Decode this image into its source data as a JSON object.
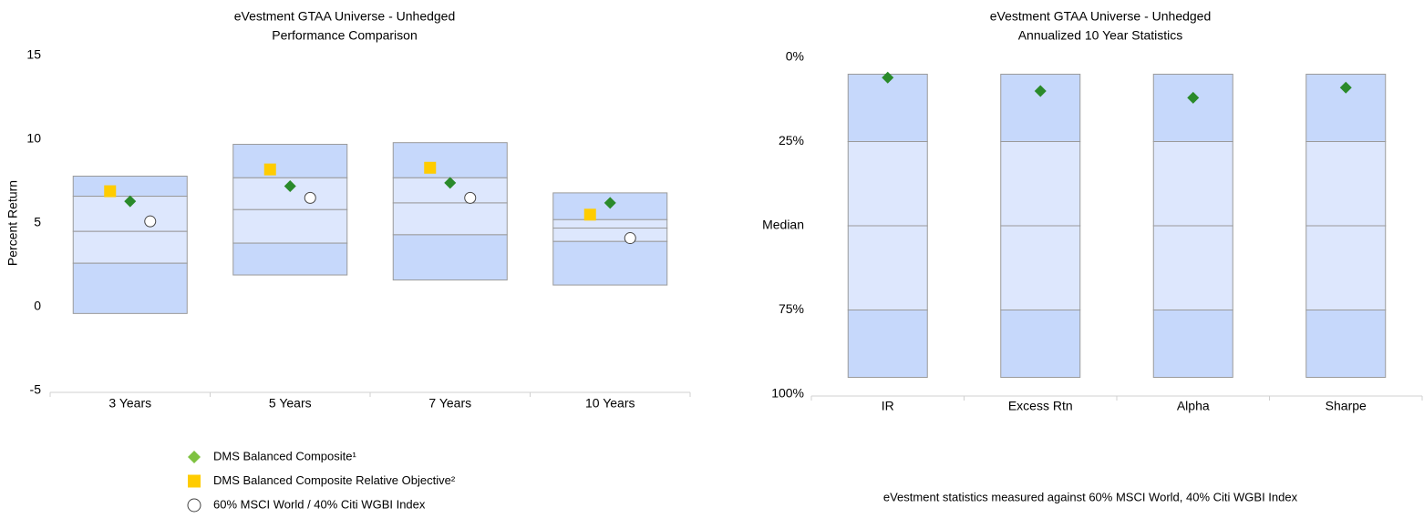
{
  "chart_data": [
    {
      "type": "floating-box",
      "title": "eVestment GTAA Universe - Unhedged",
      "subtitle": "Performance Comparison",
      "y_label": "Percent Return",
      "categories": [
        "3 Years",
        "5 Years",
        "7 Years",
        "10 Years"
      ],
      "ylim": [
        -5,
        15
      ],
      "yticks": [
        -5,
        0,
        5,
        10,
        15
      ],
      "levels": [
        [
          7.8,
          9.7,
          9.8,
          6.8
        ],
        [
          6.6,
          7.7,
          7.7,
          5.2
        ],
        [
          4.5,
          5.8,
          6.2,
          4.7
        ],
        [
          2.6,
          3.8,
          4.3,
          3.9
        ],
        [
          -0.4,
          1.9,
          1.6,
          1.3
        ]
      ],
      "band_colors": [
        "#c6d8fb",
        "#dde7fd",
        "#dde7fd",
        "#c6d8fb"
      ],
      "series": [
        {
          "name": "DMS Balanced Composite¹",
          "marker": "diamond",
          "color": "#2a8a2a",
          "legend_color": "#7fc241",
          "values": [
            6.3,
            7.2,
            7.4,
            6.2
          ]
        },
        {
          "name": "DMS Balanced Composite Relative Objective²",
          "marker": "square",
          "color": "#ffcc00",
          "legend_color": "#ffcc00",
          "values": [
            6.9,
            8.2,
            8.3,
            5.5
          ]
        },
        {
          "name": "60% MSCI World / 40% Citi WGBI Index",
          "marker": "circle",
          "color": "#ffffff",
          "legend_color": "#ffffff",
          "values": [
            5.1,
            6.5,
            6.5,
            4.1
          ]
        }
      ]
    },
    {
      "type": "floating-box",
      "title": "eVestment GTAA Universe - Unhedged",
      "subtitle": "Annualized 10 Year Statistics",
      "note": "eVestment statistics measured against 60% MSCI World, 40% Citi WGBI Index",
      "categories": [
        "IR",
        "Excess Rtn",
        "Alpha",
        "Sharpe"
      ],
      "ylim": [
        100,
        0
      ],
      "yticks": [
        {
          "value": 0,
          "label": "0%"
        },
        {
          "value": 25,
          "label": "25%"
        },
        {
          "value": 50,
          "label": "Median"
        },
        {
          "value": 75,
          "label": "75%"
        },
        {
          "value": 100,
          "label": "100%"
        }
      ],
      "levels": [
        [
          5,
          5,
          5,
          5
        ],
        [
          25,
          25,
          25,
          25
        ],
        [
          50,
          50,
          50,
          50
        ],
        [
          75,
          75,
          75,
          75
        ],
        [
          95,
          95,
          95,
          95
        ]
      ],
      "band_colors": [
        "#c6d8fb",
        "#dde7fd",
        "#dde7fd",
        "#c6d8fb"
      ],
      "series": [
        {
          "name": null,
          "marker": "diamond",
          "color": "#2a8a2a",
          "values": [
            6,
            10,
            12,
            9
          ]
        }
      ]
    }
  ]
}
